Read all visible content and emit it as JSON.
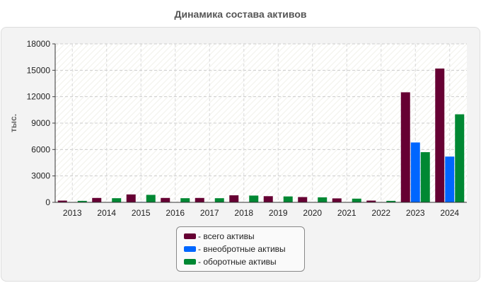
{
  "chart_data": {
    "type": "bar",
    "title": "Динамика состава активов",
    "ylabel": "тыс.",
    "xlabel": "",
    "categories": [
      "2013",
      "2014",
      "2015",
      "2016",
      "2017",
      "2018",
      "2019",
      "2020",
      "2021",
      "2022",
      "2023",
      "2024"
    ],
    "series": [
      {
        "name": "- всего активы",
        "color": "#660033",
        "values": [
          200,
          500,
          900,
          500,
          500,
          800,
          700,
          600,
          450,
          200,
          12500,
          15200
        ]
      },
      {
        "name": "- внеобротные активы",
        "color": "#0066ff",
        "values": [
          30,
          30,
          50,
          30,
          30,
          30,
          30,
          30,
          30,
          30,
          6800,
          5200
        ]
      },
      {
        "name": "- оборотные активы",
        "color": "#008833",
        "values": [
          170,
          470,
          850,
          470,
          470,
          770,
          670,
          570,
          420,
          170,
          5700,
          10000
        ]
      }
    ],
    "ylim": [
      0,
      18000
    ],
    "yticks": [
      0,
      3000,
      6000,
      9000,
      12000,
      15000,
      18000
    ],
    "grid": true,
    "legend_position": "bottom-center"
  }
}
